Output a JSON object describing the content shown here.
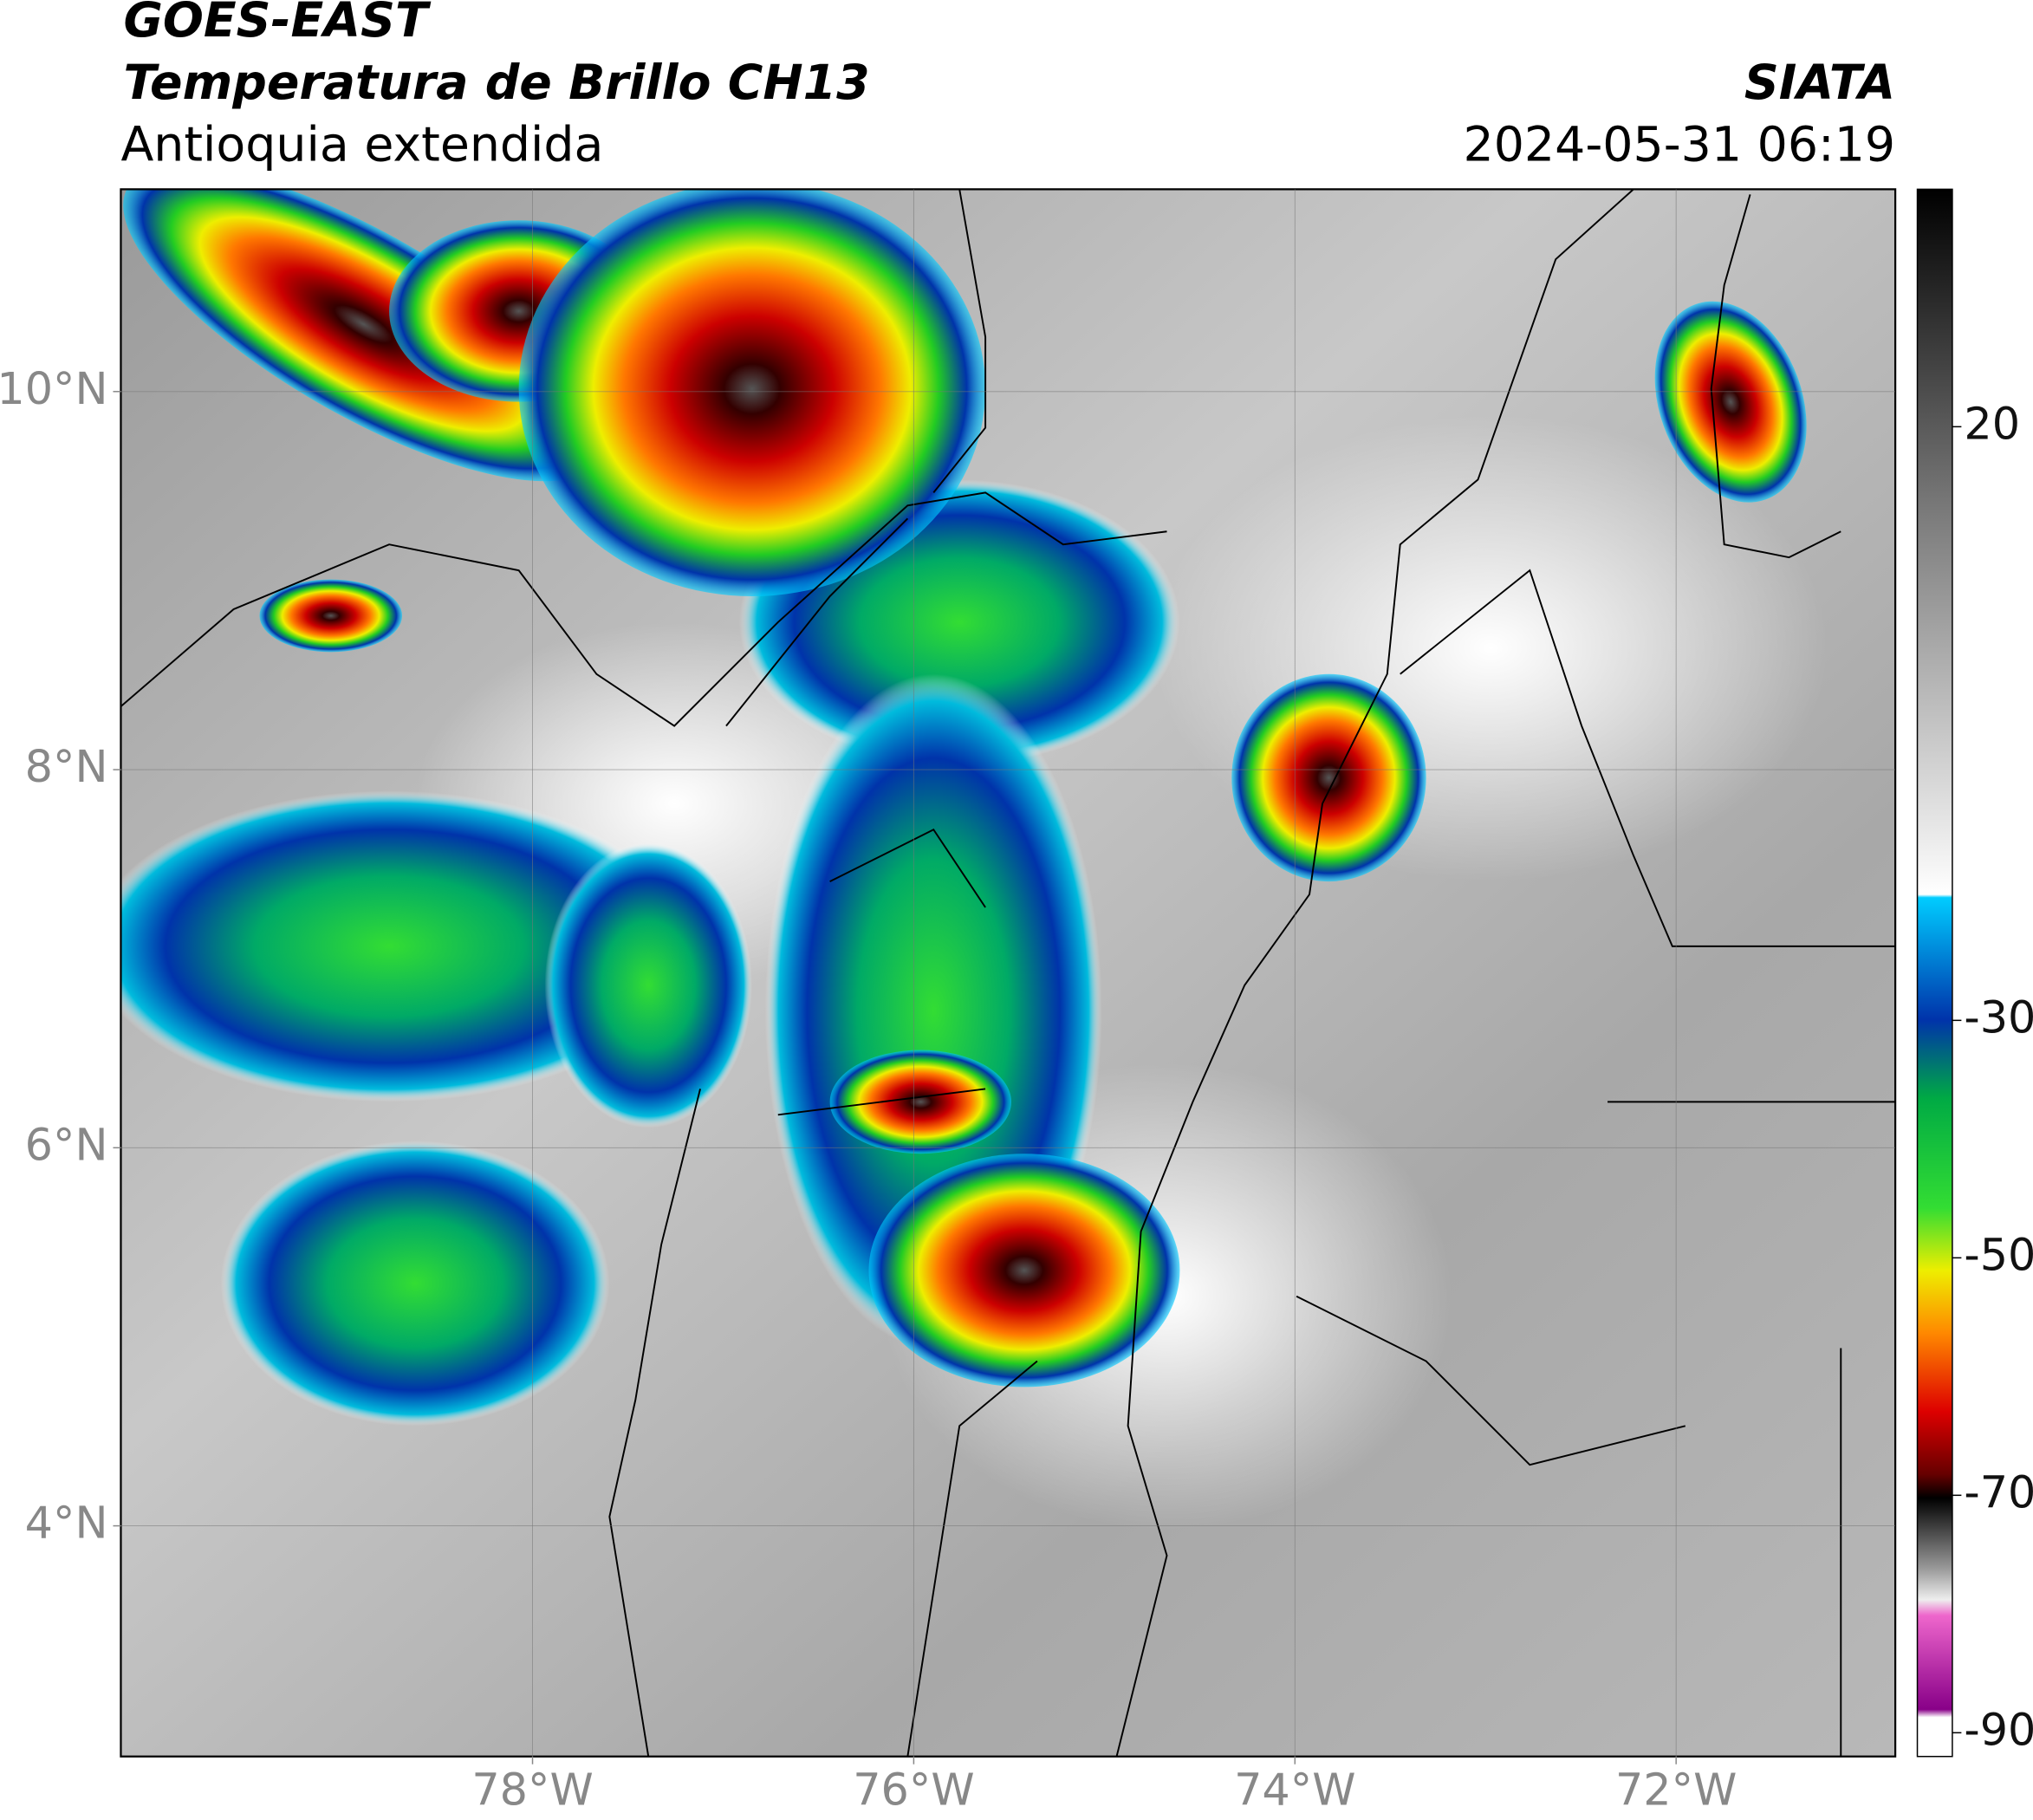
{
  "header": {
    "title": "GOES-EAST",
    "subtitle": "Temperatura de Brillo CH13",
    "region": "Antioquia extendida",
    "source": "SIATA",
    "datetime": "2024-05-31 06:19"
  },
  "map": {
    "lat_lim": [
      2.78,
      11.07
    ],
    "lon_lim": [
      -80.16,
      -70.85
    ],
    "lat_ticks": [
      {
        "value": 10,
        "label": "10°N"
      },
      {
        "value": 8,
        "label": "8°N"
      },
      {
        "value": 6,
        "label": "6°N"
      },
      {
        "value": 4,
        "label": "4°N"
      }
    ],
    "lon_ticks": [
      {
        "value": -78,
        "label": "78°W"
      },
      {
        "value": -76,
        "label": "76°W"
      },
      {
        "value": -74,
        "label": "74°W"
      },
      {
        "value": -72,
        "label": "72°W"
      }
    ],
    "grid": true
  },
  "colorbar": {
    "lim": [
      -92,
      40
    ],
    "ticks": [
      20,
      -30,
      -50,
      -70,
      -90
    ]
  }
}
